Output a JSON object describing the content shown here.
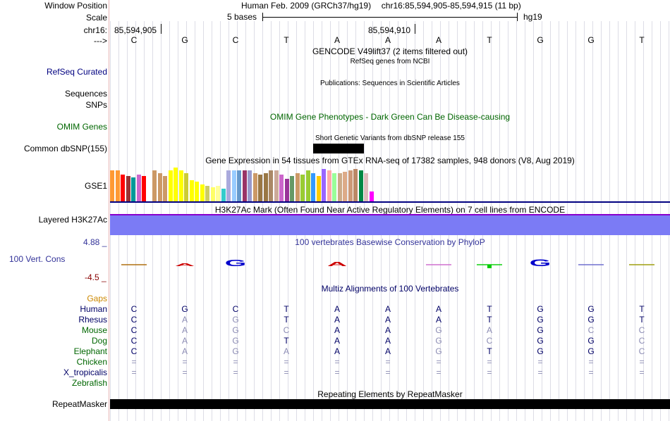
{
  "header": {
    "window_position_label": "Window Position",
    "scale_label": "Scale",
    "chrom_label": "chr16:",
    "strand_label": "--->",
    "assembly_title": "Human Feb. 2009 (GRCh37/hg19)",
    "position_range": "chr16:85,594,905-85,594,915 (11 bp)",
    "scale_text": "5 bases",
    "db": "hg19",
    "pos_start": "85,594,905",
    "pos_mid": "85,594,910"
  },
  "bases": [
    "C",
    "G",
    "C",
    "T",
    "A",
    "A",
    "A",
    "T",
    "G",
    "G",
    "T"
  ],
  "tracks": {
    "gencode_title": "GENCODE V49lift37 (2 items filtered out)",
    "refseq_label": "RefSeq Curated",
    "refseq_title": "RefSeq genes from NCBI",
    "publications_title": "Publications: Sequences in Scientific Articles",
    "sequences_label": "Sequences",
    "snps_label": "SNPs",
    "omim_title": "OMIM Gene Phenotypes - Dark Green Can Be Disease-causing",
    "omim_label": "OMIM Genes",
    "dbsnp_title": "Short Genetic Variants from dbSNP release 155",
    "dbsnp_label": "Common dbSNP(155)",
    "gtex_title": "Gene Expression in 54 tissues from GTEx RNA-seq of 17382 samples, 948 donors (V8, Aug 2019)",
    "gtex_label": "GSE1",
    "h3k27ac_title": "H3K27Ac Mark (Often Found Near Active Regulatory Elements) on 7 cell lines from ENCODE",
    "h3k27ac_label": "Layered H3K27Ac",
    "phylop_title": "100 vertebrates Basewise Conservation by PhyloP",
    "phylop_label": "100 Vert. Cons",
    "phylop_max": "4.88 _",
    "phylop_min": "-4.5 _",
    "multiz_title": "Multiz Alignments of 100 Vertebrates",
    "gaps_label": "Gaps",
    "repeat_title": "Repeating Elements by RepeatMasker",
    "repeat_label": "RepeatMasker"
  },
  "phylop_letters": [
    {
      "letter": "A",
      "color": "#cc0000",
      "score": 0.15
    },
    {
      "letter": "G",
      "color": "#0000cc",
      "score": 0.9
    },
    {
      "letter": "A",
      "color": "#cc0000",
      "score": 0.4
    },
    {
      "letter": "G",
      "color": "#0000cc",
      "score": 1.0
    }
  ],
  "gtex_colors": [
    "#ff9933",
    "#ff9933",
    "#ff0000",
    "#993333",
    "#009999",
    "#cc66cc",
    "#ff0000",
    "#ffffff",
    "#cc9966",
    "#cc9966",
    "#cc9966",
    "#ffff00",
    "#ffff00",
    "#ffff00",
    "#cccc33",
    "#ffff00",
    "#ffff00",
    "#ffff00",
    "#cccc66",
    "#ffff66",
    "#ffff99",
    "#33cccc",
    "#aaaadd",
    "#99ccff",
    "#6699cc",
    "#993366",
    "#9999cc",
    "#cc9966",
    "#997744",
    "#997744",
    "#aa8866",
    "#ccaa99",
    "#cc66cc",
    "#993399",
    "#669966",
    "#cc9966",
    "#99cc33",
    "#99cc33",
    "#3399ff",
    "#ffcc00",
    "#9966ff",
    "#ffaaaa",
    "#99ff99",
    "#ccaa88",
    "#ddaa88",
    "#cc9977",
    "#bb8866",
    "#008844",
    "#ddbbbb",
    "#ff00ff"
  ],
  "multiz": {
    "species": [
      {
        "name": "Human",
        "color": "#000066",
        "bases": [
          "C",
          "G",
          "C",
          "T",
          "A",
          "A",
          "A",
          "T",
          "G",
          "G",
          "T"
        ],
        "dim": [
          false,
          false,
          false,
          false,
          false,
          false,
          false,
          false,
          false,
          false,
          false
        ]
      },
      {
        "name": "Rhesus",
        "color": "#000066",
        "bases": [
          "C",
          "A",
          "G",
          "T",
          "A",
          "A",
          "A",
          "T",
          "G",
          "G",
          "T"
        ],
        "dim": [
          false,
          true,
          true,
          false,
          false,
          false,
          false,
          false,
          false,
          false,
          false
        ]
      },
      {
        "name": "Mouse",
        "color": "#006600",
        "bases": [
          "C",
          "A",
          "G",
          "C",
          "A",
          "A",
          "G",
          "A",
          "G",
          "C",
          "C"
        ],
        "dim": [
          false,
          true,
          true,
          true,
          false,
          false,
          true,
          true,
          false,
          true,
          true
        ]
      },
      {
        "name": "Dog",
        "color": "#006600",
        "bases": [
          "C",
          "A",
          "G",
          "T",
          "A",
          "A",
          "G",
          "C",
          "G",
          "G",
          "C"
        ],
        "dim": [
          false,
          true,
          true,
          false,
          false,
          false,
          true,
          true,
          false,
          false,
          true
        ]
      },
      {
        "name": "Elephant",
        "color": "#006600",
        "bases": [
          "C",
          "A",
          "G",
          "A",
          "A",
          "A",
          "G",
          "T",
          "G",
          "G",
          "C"
        ],
        "dim": [
          false,
          true,
          true,
          true,
          false,
          false,
          true,
          false,
          false,
          false,
          true
        ]
      },
      {
        "name": "Chicken",
        "color": "#006600",
        "bases": [
          "=",
          "=",
          "=",
          "=",
          "=",
          "=",
          "=",
          "=",
          "=",
          "=",
          "="
        ],
        "dim": [
          true,
          true,
          true,
          true,
          true,
          true,
          true,
          true,
          true,
          true,
          true
        ]
      },
      {
        "name": "X_tropicalis",
        "color": "#000066",
        "bases": [
          "=",
          "=",
          "=",
          "=",
          "=",
          "=",
          "=",
          "=",
          "=",
          "=",
          "="
        ],
        "dim": [
          true,
          true,
          true,
          true,
          true,
          true,
          true,
          true,
          true,
          true,
          true
        ]
      },
      {
        "name": "Zebrafish",
        "color": "#006600",
        "bases": [
          "",
          "",
          "",
          "",
          "",
          "",
          "",
          "",
          "",
          "",
          ""
        ],
        "dim": [
          false,
          false,
          false,
          false,
          false,
          false,
          false,
          false,
          false,
          false,
          false
        ]
      }
    ]
  }
}
